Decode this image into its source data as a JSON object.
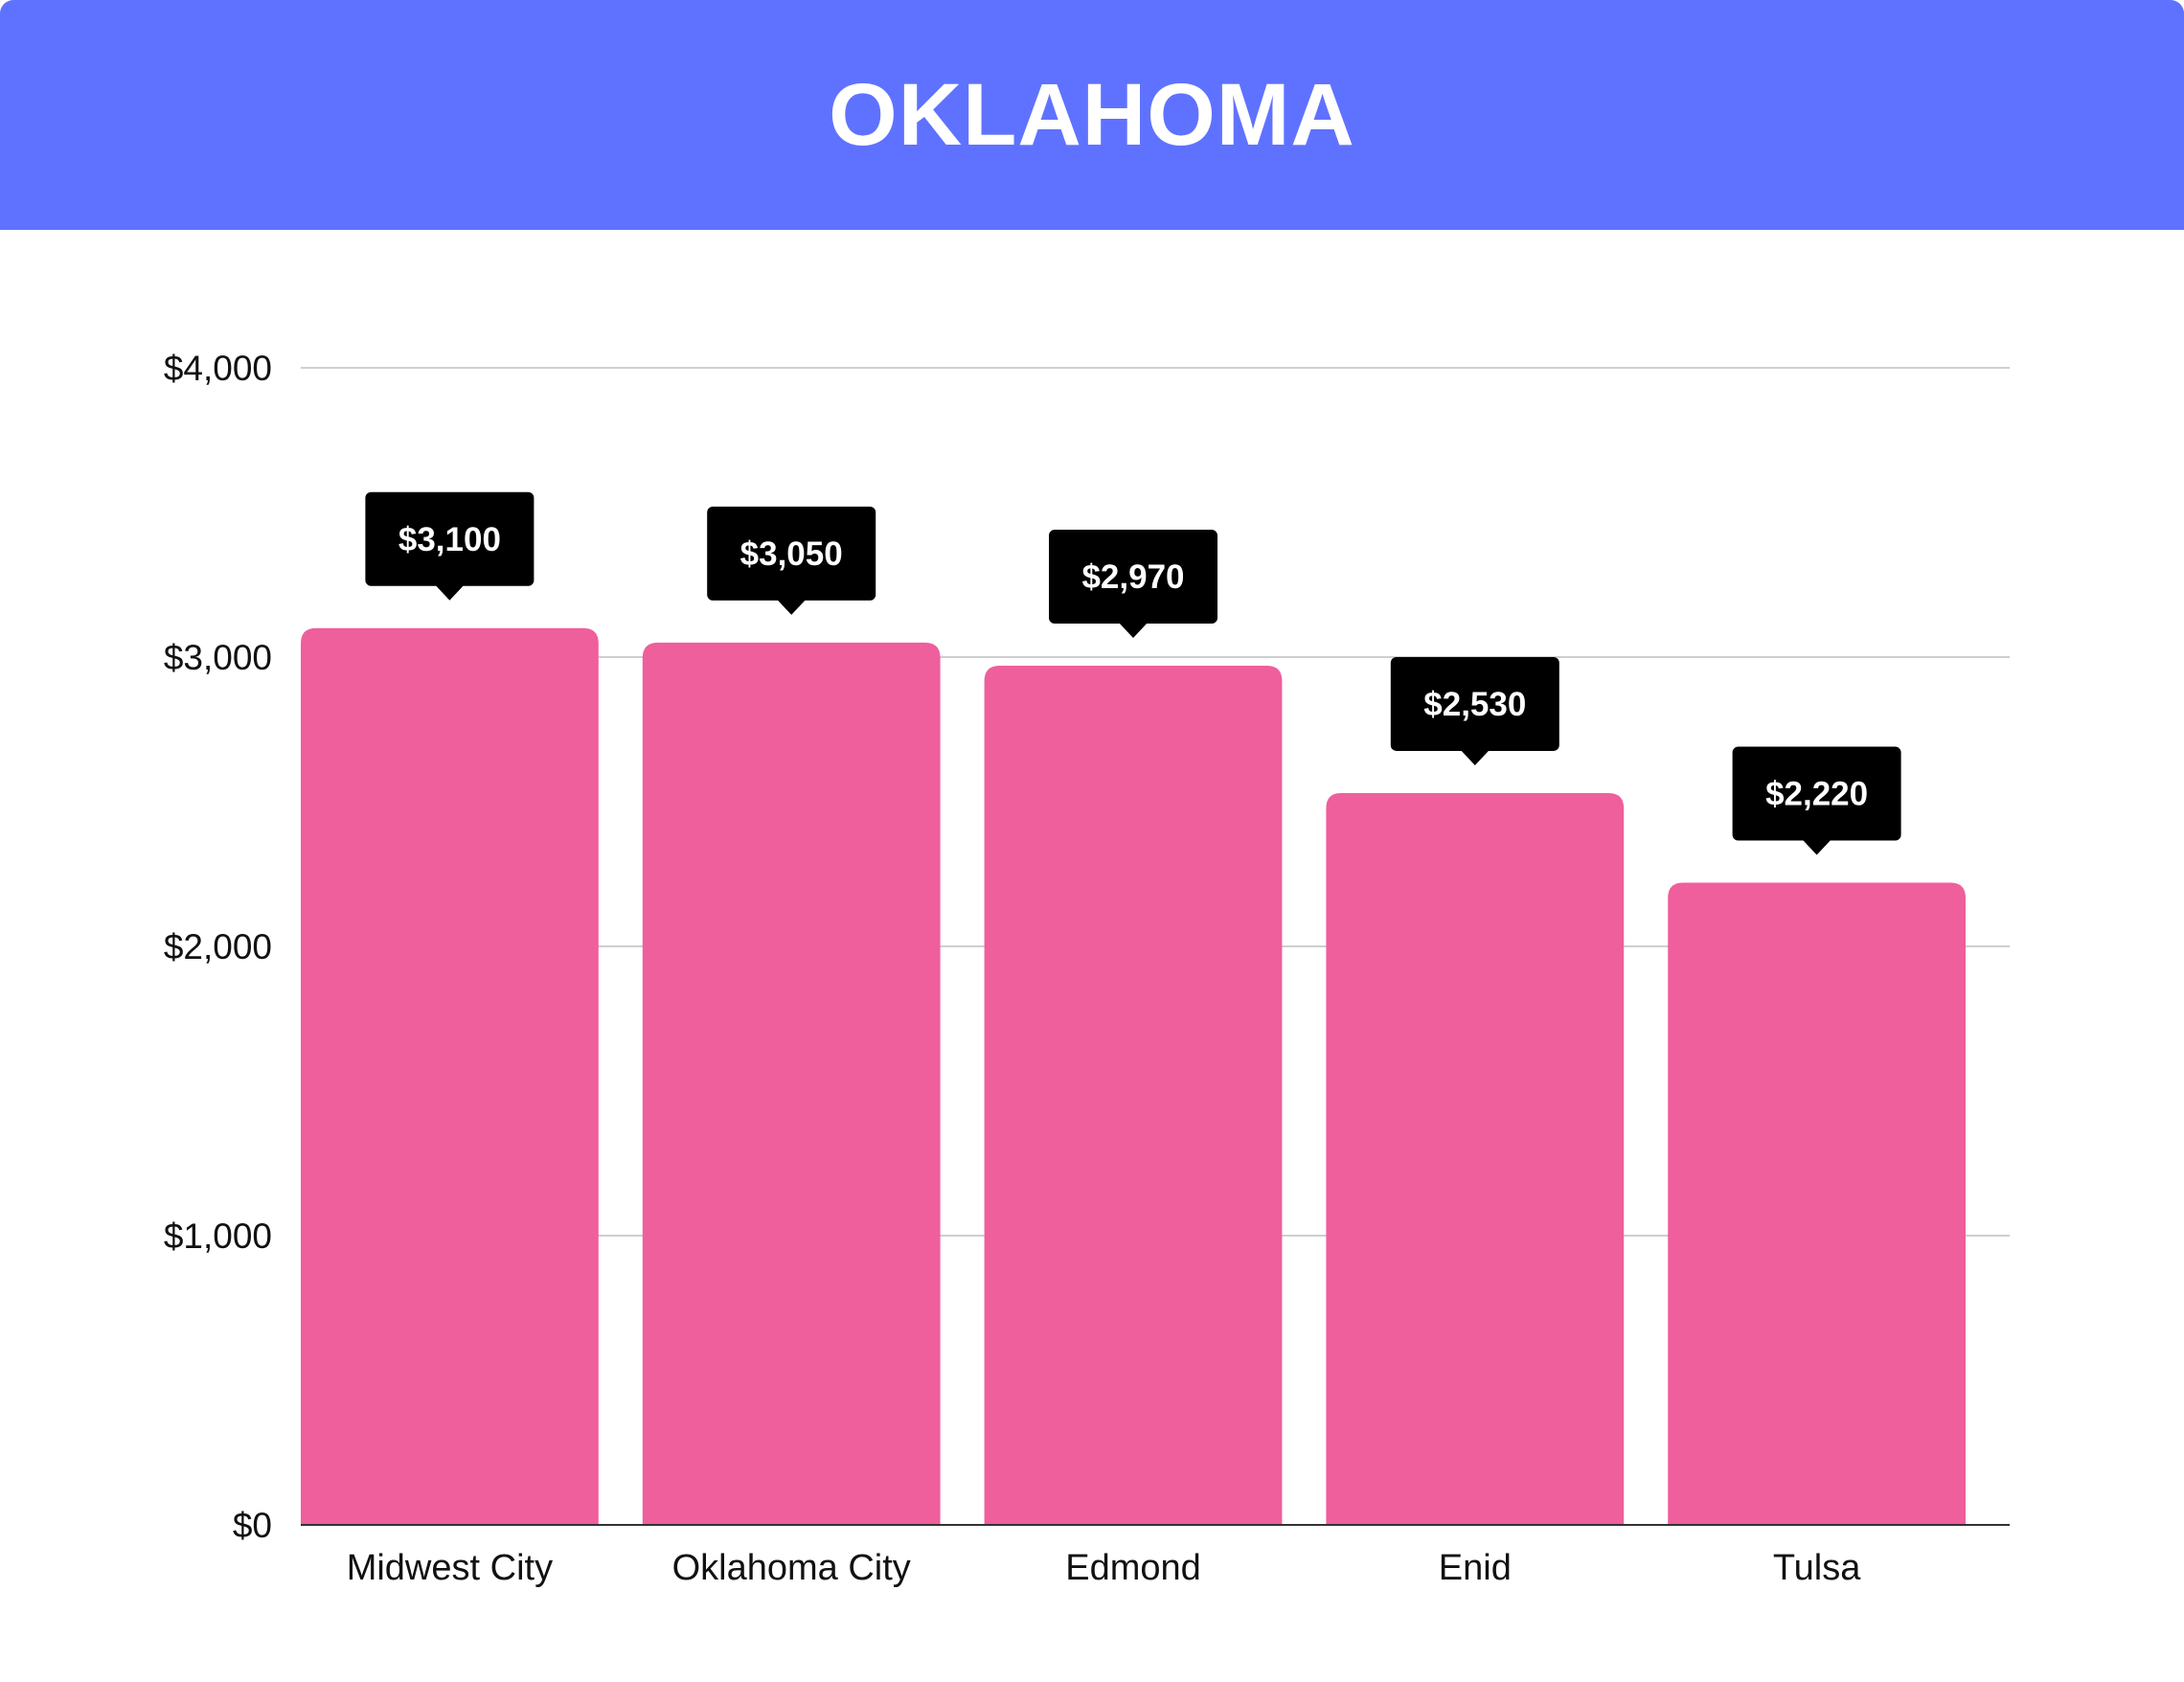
{
  "header": {
    "title": "OKLAHOMA"
  },
  "colors": {
    "header_bg": "#5f72ff",
    "bar": "#ee5f9c",
    "label_bg": "#000000",
    "grid": "#cfcfcf"
  },
  "chart_data": {
    "type": "bar",
    "title": "OKLAHOMA",
    "categories": [
      "Midwest City",
      "Oklahoma City",
      "Edmond",
      "Enid",
      "Tulsa"
    ],
    "values": [
      3100,
      3050,
      2970,
      2530,
      2220
    ],
    "data_labels": [
      "$3,100",
      "$3,050",
      "$2,970",
      "$2,530",
      "$2,220"
    ],
    "ylim": [
      0,
      4000
    ],
    "yticks": [
      0,
      1000,
      2000,
      3000,
      4000
    ],
    "ytick_labels": [
      "$0",
      "$1,000",
      "$2,000",
      "$3,000",
      "$4,000"
    ],
    "xlabel": "",
    "ylabel": "",
    "grid": true,
    "legend": "none"
  }
}
